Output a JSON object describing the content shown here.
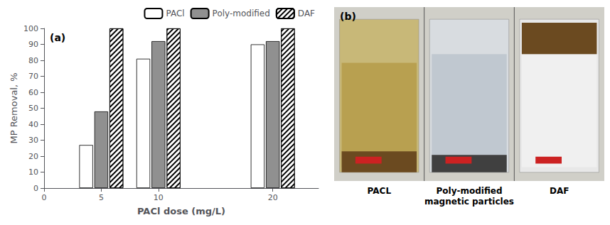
{
  "chart_data": {
    "type": "bar",
    "x": [
      5,
      10,
      20
    ],
    "series": [
      {
        "name": "PACl",
        "color": "white",
        "values": [
          27,
          81,
          90
        ]
      },
      {
        "name": "Poly-modified",
        "color": "#909090",
        "values": [
          48,
          92,
          92
        ]
      },
      {
        "name": "DAF",
        "color": "white",
        "values": [
          100,
          100,
          100
        ]
      }
    ],
    "xlabel": "PACl dose (mg/L)",
    "ylabel": "MP Removal, %",
    "xlim": [
      0,
      24
    ],
    "xticks": [
      0,
      5,
      10,
      20
    ],
    "ylim": [
      0,
      100
    ],
    "yticks": [
      0,
      10,
      20,
      30,
      40,
      50,
      60,
      70,
      80,
      90,
      100
    ],
    "grid": false,
    "legend": "upper right",
    "annotations": [
      "(a)",
      "(b)",
      "PACL",
      "Poly-modified\nmagnetic particles",
      "DAF"
    ]
  }
}
